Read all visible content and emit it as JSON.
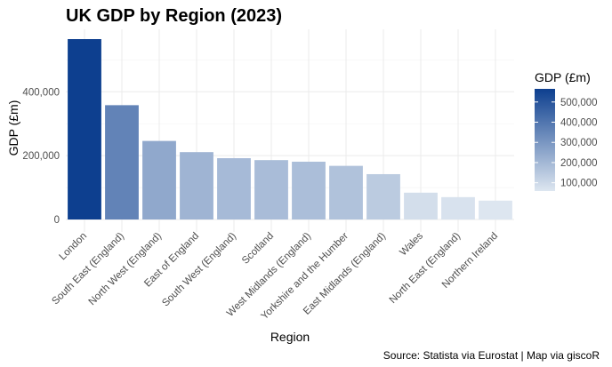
{
  "chart_data": {
    "type": "bar",
    "title": "UK GDP by Region (2023)",
    "xlabel": "Region",
    "ylabel": "GDP (£m)",
    "categories": [
      "London",
      "South East (England)",
      "North West (England)",
      "East of England",
      "South West (England)",
      "Scotland",
      "West Midlands (England)",
      "Yorkshire and the Humber",
      "East Midlands (England)",
      "Wales",
      "North East (England)",
      "Northern Ireland"
    ],
    "values": [
      565000,
      358000,
      246000,
      211000,
      192000,
      186000,
      181000,
      168000,
      142000,
      84000,
      70000,
      59000
    ],
    "ylim": [
      0,
      565000
    ],
    "yticks": [
      0,
      200000,
      400000
    ],
    "ytick_labels": [
      "0",
      "200,000",
      "400,000"
    ],
    "grid": true,
    "legend": {
      "title": "GDP (£m)",
      "position": "right",
      "colors": [
        "#dde6f0",
        "#0d3f8f"
      ],
      "range": [
        59000,
        565000
      ],
      "ticks": [
        100000,
        200000,
        300000,
        400000,
        500000
      ],
      "tick_labels": [
        "100,000",
        "200,000",
        "300,000",
        "400,000",
        "500,000"
      ]
    },
    "caption": "Source: Statista via Eurostat | Map via giscoR"
  }
}
